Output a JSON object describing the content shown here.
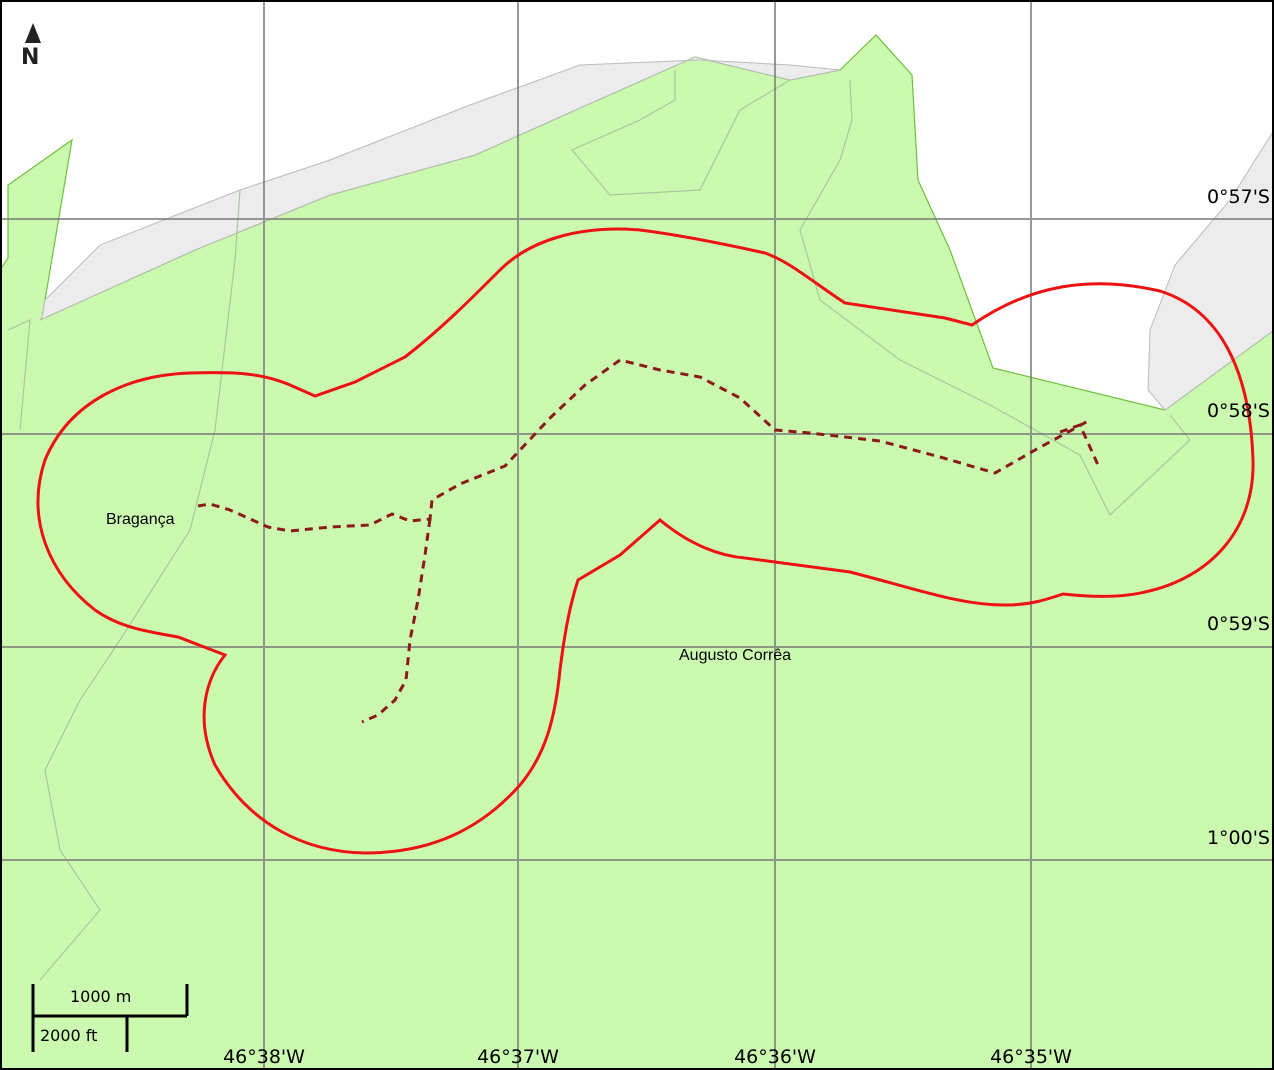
{
  "map": {
    "north_indicator": "N",
    "colors": {
      "land": "#ccf9b0",
      "land_border": "#6fbf3c",
      "water": "#ffffff",
      "mud": "#eeeeee",
      "grid": "#777777",
      "route": "#ee1111",
      "track": "#8b1a1a"
    },
    "latitude_labels": [
      "0°57'S",
      "0°58'S",
      "0°59'S",
      "1°00'S"
    ],
    "longitude_labels": [
      "46°38'W",
      "46°37'W",
      "46°36'W",
      "46°35'W"
    ],
    "places": [
      {
        "name": "Bragança"
      },
      {
        "name": "Augusto Corrêa"
      }
    ],
    "scale_bar": {
      "metric_label": "1000 m",
      "imperial_label": "2000 ft"
    }
  }
}
